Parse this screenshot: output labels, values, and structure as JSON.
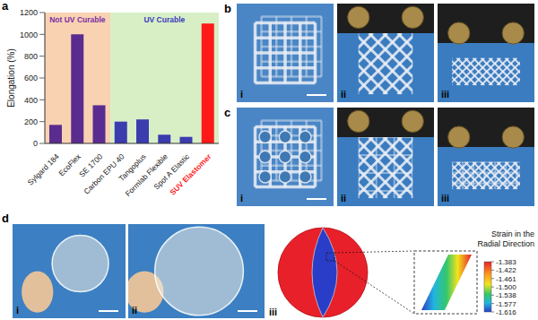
{
  "chart_data": {
    "type": "bar",
    "ylabel": "Elongation (%)",
    "categories": [
      "Sylgard 184",
      "EcoFlex",
      "SE 1700",
      "Carbon EPU 40",
      "Tangoplus",
      "Formlab Flexible",
      "Spot A Elastic",
      "SUV Elastomer"
    ],
    "values": [
      170,
      1000,
      350,
      200,
      220,
      80,
      60,
      1100
    ],
    "colors": [
      "#5b2c8f",
      "#5b2c8f",
      "#5b2c8f",
      "#3b3cae",
      "#3b3cae",
      "#3b3cae",
      "#3b3cae",
      "#ff1a1a"
    ],
    "ylim": [
      0,
      1200
    ],
    "yticks": [
      0,
      200,
      400,
      600,
      800,
      1000,
      1200
    ],
    "grid": false,
    "annotations": [
      {
        "text": "Not UV Curable",
        "from": "Sylgard 184",
        "to": "SE 1700",
        "color": "#7b2fa6"
      },
      {
        "text": "UV Curable",
        "from": "Carbon EPU 40",
        "to": "SUV Elastomer",
        "color": "#3b3cc0"
      }
    ]
  },
  "panels": {
    "a": {
      "letter": "a"
    },
    "b": {
      "letter": "b",
      "images": [
        "i",
        "ii",
        "iii"
      ]
    },
    "c": {
      "letter": "c",
      "images": [
        "i",
        "ii",
        "iii"
      ]
    },
    "d": {
      "letter": "d",
      "images": [
        "i",
        "ii"
      ],
      "simulation": {
        "label": "iii",
        "colorbar": {
          "title": "Strain in the Radial Direction",
          "range": [
            -1.616,
            -1.383
          ],
          "ticks": [
            -1.383,
            -1.422,
            -1.461,
            {
              "value": -1.5,
              "label": "-1.500"
            },
            -1.538,
            -1.577,
            -1.616
          ]
        }
      }
    }
  }
}
